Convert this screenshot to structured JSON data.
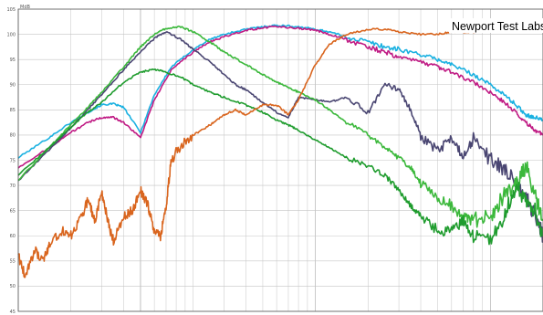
{
  "chart_data": {
    "type": "line",
    "title": "",
    "annotation": "Newport Test Labs",
    "y_unit": "MdB",
    "xlabel": "",
    "ylabel": "",
    "x_scale": "log",
    "xlim": [
      20,
      20000
    ],
    "ylim": [
      45,
      105
    ],
    "y_ticks": [
      45,
      50,
      55,
      60,
      65,
      70,
      75,
      80,
      85,
      90,
      95,
      100,
      105
    ],
    "grid": true,
    "colors": {
      "cyan": "#1ab1e1",
      "magenta": "#c01b84",
      "gray": "#4a4672",
      "green_light": "#3bb83b",
      "green_dark": "#1f9c2e",
      "orange": "#d9651e"
    },
    "series": [
      {
        "color": "cyan",
        "x": [
          20,
          30,
          40,
          50,
          60,
          70,
          80,
          100,
          120,
          150,
          200,
          250,
          300,
          400,
          500,
          600,
          800,
          1000,
          1200,
          1500,
          2000,
          2500,
          3000,
          4000,
          5000,
          6000,
          8000,
          10000,
          12000,
          14000,
          16000,
          18000,
          20000
        ],
        "y": [
          75.5,
          79.5,
          82.5,
          84.5,
          86,
          86.2,
          85.5,
          80.5,
          88,
          93.5,
          97,
          99,
          100,
          101,
          101.5,
          101.8,
          101.5,
          101,
          100.5,
          99.5,
          98.5,
          97.5,
          97,
          96,
          95,
          94,
          92,
          90,
          88,
          86,
          84,
          83.5,
          83
        ]
      },
      {
        "color": "magenta",
        "x": [
          20,
          30,
          40,
          50,
          60,
          70,
          80,
          100,
          120,
          150,
          200,
          250,
          300,
          400,
          500,
          600,
          800,
          1000,
          1200,
          1500,
          2000,
          2500,
          3000,
          4000,
          5000,
          6000,
          8000,
          10000,
          12000,
          14000,
          16000,
          18000,
          20000
        ],
        "y": [
          73.5,
          77.5,
          80.5,
          82.5,
          83.5,
          83.5,
          82.5,
          79.5,
          87,
          93,
          96.5,
          98.5,
          99.5,
          100.8,
          101.3,
          101.5,
          101.2,
          100.8,
          100,
          99,
          97.5,
          96.5,
          95.5,
          94.5,
          93.5,
          92.5,
          90.5,
          88.5,
          86.5,
          84.5,
          82.5,
          81,
          80
        ]
      },
      {
        "color": "gray",
        "x": [
          20,
          30,
          40,
          50,
          60,
          80,
          100,
          120,
          140,
          170,
          200,
          250,
          300,
          350,
          400,
          500,
          600,
          700,
          800,
          1000,
          1200,
          1500,
          2000,
          2500,
          3000,
          3500,
          4000,
          5000,
          6000,
          7000,
          8000,
          10000,
          12000,
          14000,
          16000,
          18000,
          20000
        ],
        "y": [
          71,
          77,
          81.5,
          85,
          88,
          93,
          96.5,
          99.2,
          100.5,
          99,
          97,
          94.5,
          92,
          90,
          89,
          86.5,
          84.5,
          83.5,
          87.5,
          87,
          86.5,
          87.5,
          84.5,
          90,
          89,
          85,
          80,
          77,
          79,
          76,
          79,
          75,
          73,
          71,
          68,
          64,
          60
        ]
      },
      {
        "color": "green_light",
        "x": [
          20,
          30,
          40,
          50,
          60,
          80,
          100,
          120,
          140,
          170,
          200,
          250,
          300,
          400,
          500,
          600,
          700,
          800,
          1000,
          1200,
          1500,
          2000,
          2500,
          3000,
          3500,
          4000,
          5000,
          6000,
          7000,
          8000,
          10000,
          12000,
          14000,
          16000,
          18000,
          20000
        ],
        "y": [
          71,
          77.5,
          82,
          85.5,
          88.5,
          93.5,
          97.5,
          100,
          101.2,
          101.5,
          100.5,
          98.5,
          96.5,
          94,
          92,
          90.5,
          89.5,
          88.5,
          87,
          85,
          82.5,
          80,
          77.5,
          75.5,
          73.5,
          70.5,
          67.5,
          66,
          63.5,
          63,
          64,
          68,
          70,
          74,
          68,
          63
        ]
      },
      {
        "color": "green_dark",
        "x": [
          20,
          30,
          40,
          50,
          60,
          80,
          100,
          120,
          140,
          170,
          200,
          250,
          300,
          400,
          500,
          600,
          700,
          800,
          1000,
          1200,
          1500,
          2000,
          2500,
          3000,
          3500,
          4000,
          5000,
          6000,
          7000,
          8000,
          10000,
          12000,
          14000,
          16000,
          18000,
          20000
        ],
        "y": [
          72,
          77.5,
          81.5,
          84.5,
          86.5,
          90.5,
          92.5,
          93,
          92.5,
          91.5,
          90,
          88.5,
          87.5,
          86,
          84.5,
          83,
          82,
          81,
          79,
          77.5,
          75.5,
          74,
          72,
          69,
          66,
          64,
          61,
          61,
          63,
          60,
          59,
          64,
          70,
          67,
          65,
          60
        ]
      },
      {
        "color": "orange",
        "x": [
          20,
          22,
          25,
          28,
          30,
          35,
          40,
          45,
          50,
          55,
          60,
          65,
          70,
          80,
          90,
          100,
          110,
          120,
          130,
          140,
          150,
          170,
          200,
          250,
          300,
          350,
          400,
          500,
          600,
          700,
          800,
          1000,
          1200,
          1500,
          2000,
          2500,
          3000,
          4000,
          5000,
          6000,
          8000,
          10000,
          12000,
          15000,
          20000
        ],
        "y": [
          56,
          52,
          57,
          55,
          58,
          61,
          60,
          63,
          67,
          63,
          68.5,
          63,
          59,
          64,
          65,
          69,
          66,
          61,
          60,
          66,
          75,
          78,
          80,
          82,
          84,
          85,
          84,
          86,
          86,
          84,
          87,
          94,
          98,
          100,
          101,
          101,
          100.5,
          100,
          100,
          100.5,
          100.5,
          101,
          101.2,
          100.8,
          101
        ]
      }
    ]
  }
}
